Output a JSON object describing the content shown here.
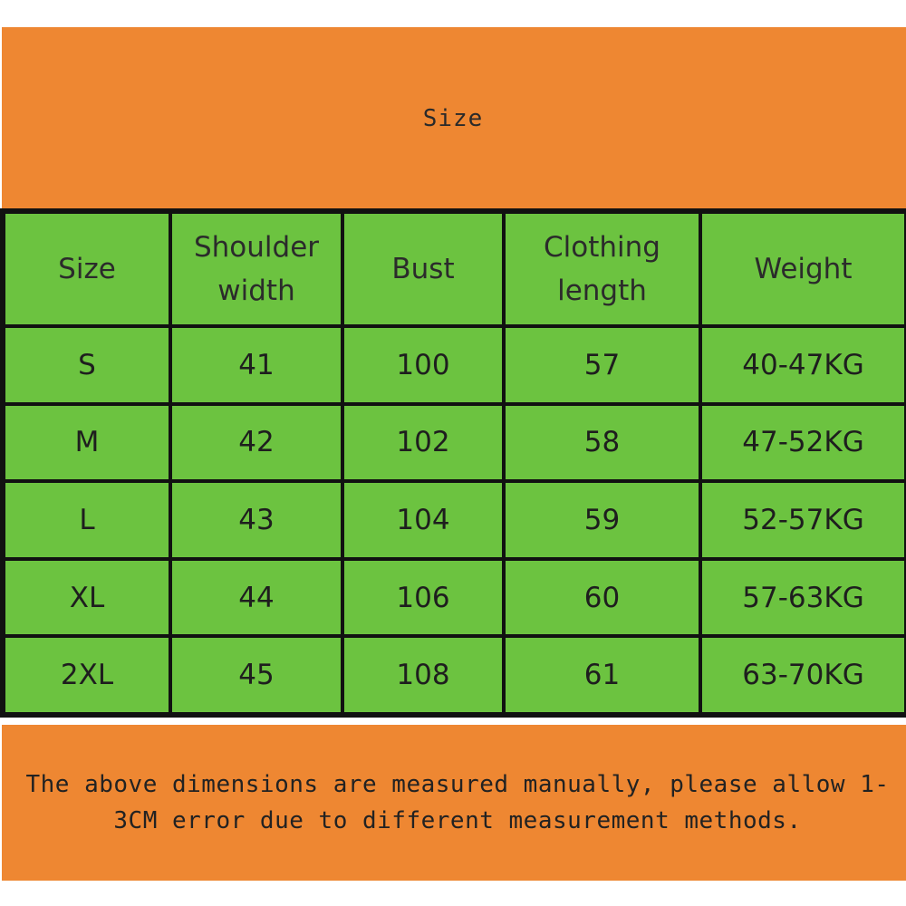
{
  "header": {
    "title": "Size"
  },
  "table": {
    "columns": [
      "Size",
      "Shoulder width",
      "Bust",
      "Clothing length",
      "Weight"
    ],
    "rows": [
      [
        "S",
        "41",
        "100",
        "57",
        "40-47KG"
      ],
      [
        "M",
        "42",
        "102",
        "58",
        "47-52KG"
      ],
      [
        "L",
        "43",
        "104",
        "59",
        "52-57KG"
      ],
      [
        "XL",
        "44",
        "106",
        "60",
        "57-63KG"
      ],
      [
        "2XL",
        "45",
        "108",
        "61",
        "63-70KG"
      ]
    ]
  },
  "footer": {
    "note": "The above dimensions are measured manually, please allow 1-3CM error due to different measurement methods."
  },
  "colors": {
    "banner": "#ee8732",
    "cell": "#6cc340",
    "grid": "#111111"
  }
}
